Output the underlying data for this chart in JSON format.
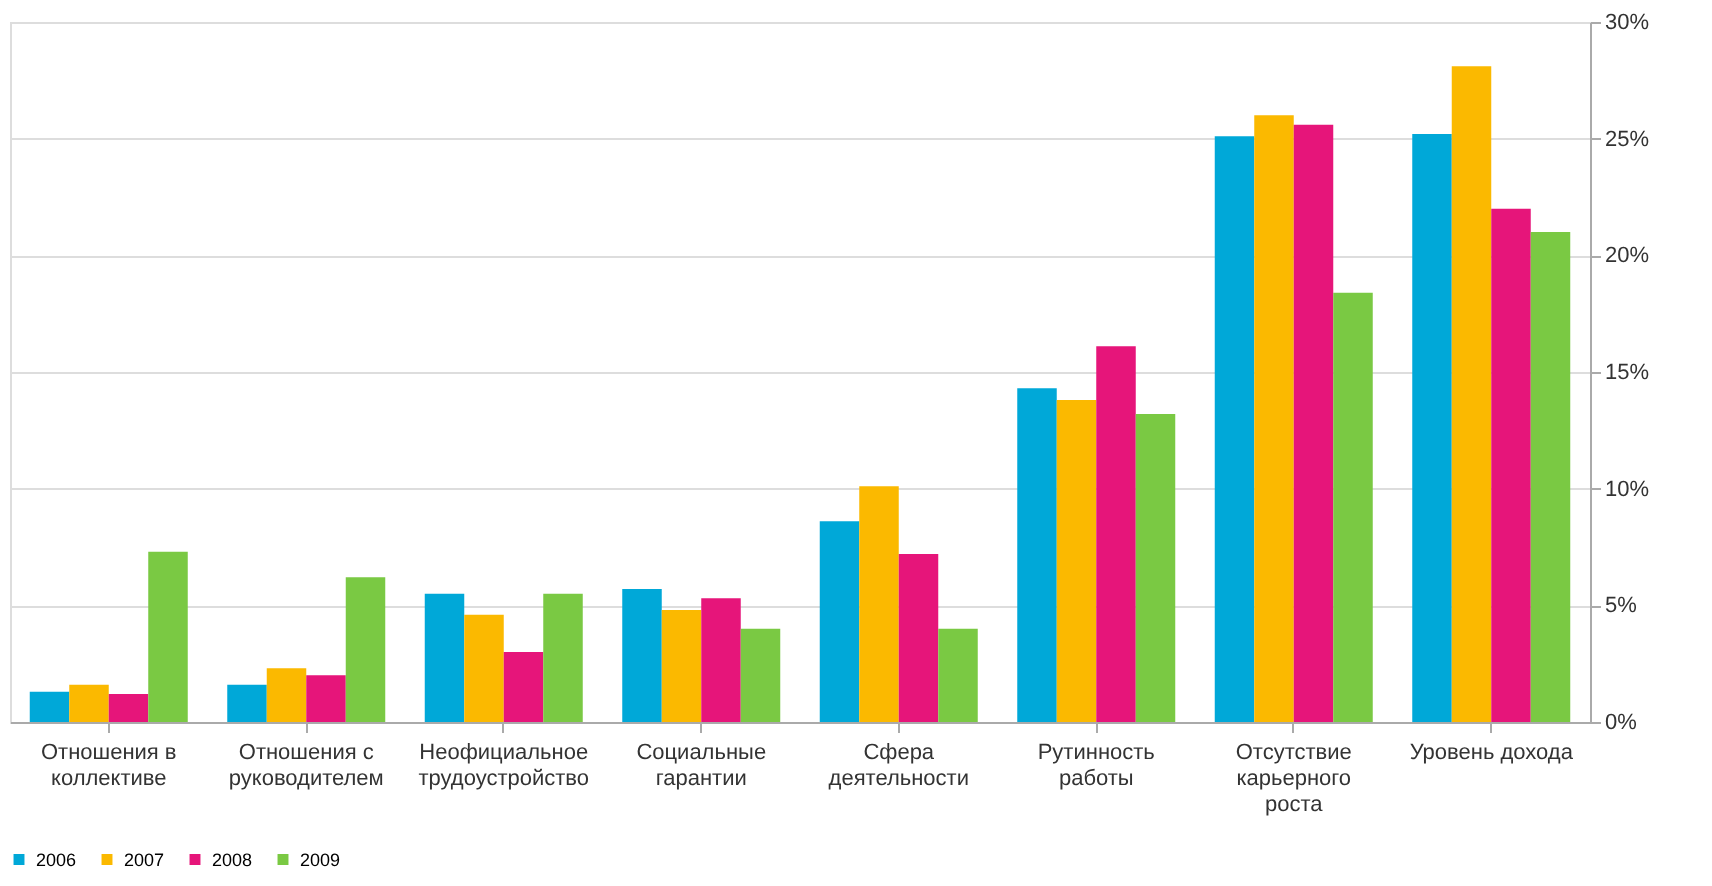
{
  "chart_data": {
    "type": "bar",
    "categories": [
      "Отношения в\nколлективе",
      "Отношения с\nруководителем",
      "Неофициальное\nтрудоустройство",
      "Социальные\nгарантии",
      "Сфера\nдеятельности",
      "Рутинность\nработы",
      "Отсутствие\nкарьерного\nроста",
      "Уровень дохода"
    ],
    "series": [
      {
        "name": "2006",
        "color": "#00a8d8",
        "values": [
          1.3,
          1.6,
          5.5,
          5.7,
          8.6,
          14.3,
          25.1,
          25.2
        ]
      },
      {
        "name": "2007",
        "color": "#fbb900",
        "values": [
          1.6,
          2.3,
          4.6,
          4.8,
          10.1,
          13.8,
          26.0,
          28.1
        ]
      },
      {
        "name": "2008",
        "color": "#e6157a",
        "values": [
          1.2,
          2.0,
          3.0,
          5.3,
          7.2,
          16.1,
          25.6,
          22.0
        ]
      },
      {
        "name": "2009",
        "color": "#7ac943",
        "values": [
          7.3,
          6.2,
          5.5,
          4.0,
          4.0,
          13.2,
          18.4,
          21.0
        ]
      }
    ],
    "ylim": [
      0,
      30
    ],
    "yticks": [
      {
        "value": 0,
        "label": "0%"
      },
      {
        "value": 5,
        "label": "5%"
      },
      {
        "value": 10,
        "label": "10%"
      },
      {
        "value": 15,
        "label": "15%"
      },
      {
        "value": 20,
        "label": "20%"
      },
      {
        "value": 25,
        "label": "25%"
      },
      {
        "value": 30,
        "label": "30%"
      }
    ],
    "grid": "y",
    "legend": "bottom"
  }
}
